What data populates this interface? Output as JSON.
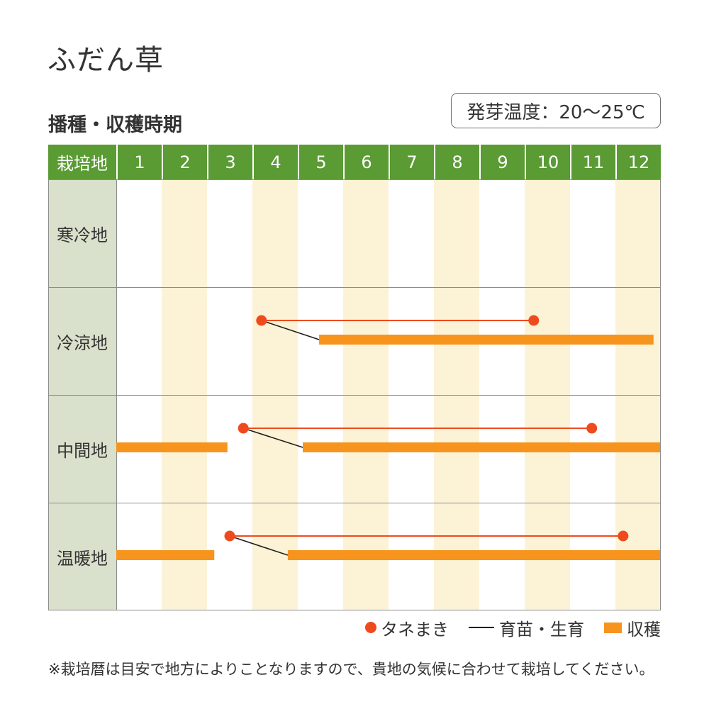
{
  "title": "ふだん草",
  "subtitle": "播種・収穫時期",
  "germination": "発芽温度：20〜25℃",
  "note": "※栽培暦は目安で地方によりことなりますので、貴地の気候に合わせて栽培してください。",
  "colors": {
    "header_bg": "#5a9b34",
    "region_bg": "#d9e0cb",
    "stripe": "#fcf2d6",
    "text": "#333333",
    "grid": "#8c8c8c",
    "frame": "#707070"
  },
  "chart_data": {
    "type": "bar",
    "orientation": "horizontal",
    "corner_label": "栽培地",
    "x_categories": [
      "1",
      "2",
      "3",
      "4",
      "5",
      "6",
      "7",
      "8",
      "9",
      "10",
      "11",
      "12"
    ],
    "xlim": [
      1,
      13
    ],
    "rows": [
      {
        "label": "寒冷地",
        "sowing": [],
        "growth": [],
        "harvest": []
      },
      {
        "label": "冷涼地",
        "sowing": [
          [
            4.2,
            10.2
          ]
        ],
        "growth": [
          [
            4.2,
            5.47
          ]
        ],
        "harvest": [
          [
            5.47,
            12.84
          ]
        ]
      },
      {
        "label": "中間地",
        "sowing": [
          [
            3.8,
            11.48
          ]
        ],
        "growth": [
          [
            3.8,
            5.11
          ]
        ],
        "harvest": [
          [
            1,
            3.45
          ],
          [
            5.11,
            13
          ]
        ]
      },
      {
        "label": "温暖地",
        "sowing": [
          [
            3.5,
            12.17
          ]
        ],
        "growth": [
          [
            3.5,
            4.78
          ]
        ],
        "harvest": [
          [
            1,
            3.16
          ],
          [
            4.78,
            13
          ]
        ]
      }
    ],
    "legend": {
      "position": "bottom-right",
      "items": [
        {
          "label": "タネまき",
          "marker": "dot",
          "color": "#ef4a1d"
        },
        {
          "label": "育苗・生育",
          "marker": "line",
          "color": "#1e1e1e"
        },
        {
          "label": "収穫",
          "marker": "bar",
          "color": "#f7941d"
        }
      ]
    }
  }
}
